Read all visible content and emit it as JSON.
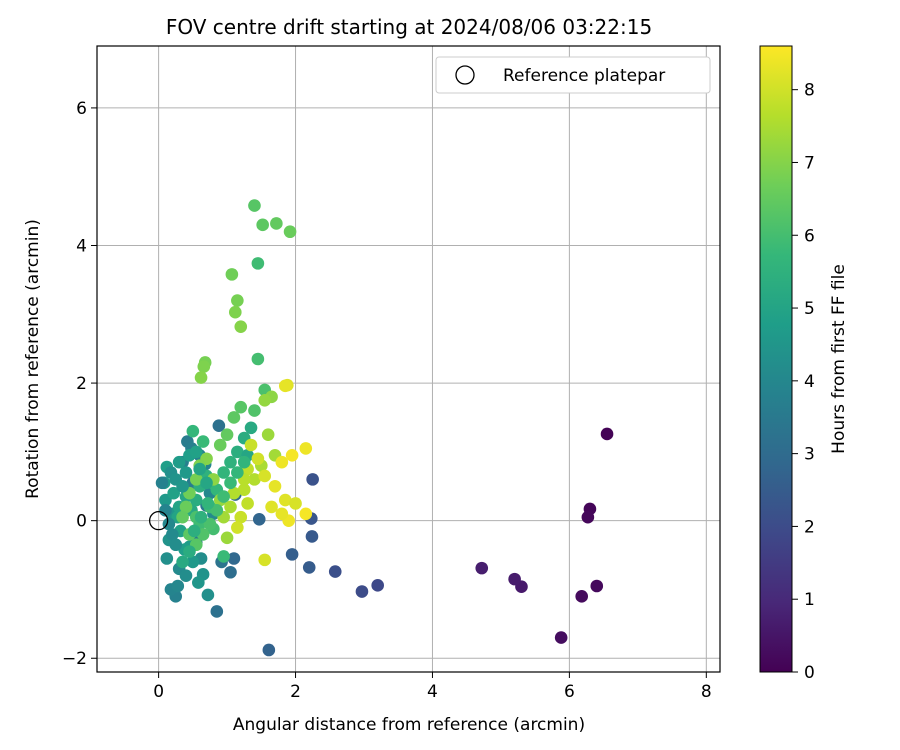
{
  "chart_data": {
    "type": "scatter",
    "title": "FOV centre drift starting at 2024/08/06 03:22:15",
    "xlabel": "Angular distance from reference (arcmin)",
    "ylabel": "Rotation from reference (arcmin)",
    "xlim": [
      -0.9,
      8.2
    ],
    "ylim": [
      -2.2,
      6.9
    ],
    "xticks": [
      0,
      2,
      4,
      6,
      8
    ],
    "yticks": [
      -2,
      0,
      2,
      4,
      6
    ],
    "grid": true,
    "legend": {
      "position": "top-right",
      "label": "Reference platepar"
    },
    "reference_point": {
      "x": 0,
      "y": 0
    },
    "colorbar": {
      "label": "Hours from first FF file",
      "min": 0,
      "max": 8.6,
      "ticks": [
        0,
        1,
        2,
        3,
        4,
        5,
        6,
        7,
        8
      ],
      "colormap": "viridis",
      "stops": [
        "#440154",
        "#482878",
        "#3e4989",
        "#31688e",
        "#26828e",
        "#1f9e89",
        "#35b779",
        "#6ece58",
        "#b5de2b",
        "#fde725"
      ]
    },
    "points": [
      {
        "x": 6.55,
        "y": 1.26,
        "h": 0.05
      },
      {
        "x": 6.3,
        "y": 0.17,
        "h": 0.1
      },
      {
        "x": 6.27,
        "y": 0.05,
        "h": 0.15
      },
      {
        "x": 6.4,
        "y": -0.95,
        "h": 0.2
      },
      {
        "x": 6.18,
        "y": -1.1,
        "h": 0.25
      },
      {
        "x": 5.88,
        "y": -1.7,
        "h": 0.3
      },
      {
        "x": 5.3,
        "y": -0.96,
        "h": 0.6
      },
      {
        "x": 5.2,
        "y": -0.85,
        "h": 0.65
      },
      {
        "x": 4.72,
        "y": -0.69,
        "h": 0.7
      },
      {
        "x": 3.2,
        "y": -0.94,
        "h": 1.9
      },
      {
        "x": 2.97,
        "y": -1.03,
        "h": 2.0
      },
      {
        "x": 2.58,
        "y": -0.74,
        "h": 2.1
      },
      {
        "x": 2.25,
        "y": 0.6,
        "h": 2.2
      },
      {
        "x": 2.23,
        "y": 0.03,
        "h": 2.3
      },
      {
        "x": 2.24,
        "y": -0.23,
        "h": 2.4
      },
      {
        "x": 2.2,
        "y": -0.68,
        "h": 2.5
      },
      {
        "x": 1.95,
        "y": -0.49,
        "h": 2.6
      },
      {
        "x": 1.61,
        "y": -1.88,
        "h": 2.7
      },
      {
        "x": 1.47,
        "y": 0.02,
        "h": 2.8
      },
      {
        "x": 1.1,
        "y": -0.55,
        "h": 2.9
      },
      {
        "x": 1.12,
        "y": 0.38,
        "h": 3.0
      },
      {
        "x": 1.05,
        "y": -0.75,
        "h": 3.1
      },
      {
        "x": 0.88,
        "y": 1.38,
        "h": 3.2
      },
      {
        "x": 0.85,
        "y": -1.32,
        "h": 3.2
      },
      {
        "x": 0.92,
        "y": -0.6,
        "h": 3.3
      },
      {
        "x": 0.7,
        "y": 0.22,
        "h": 3.4
      },
      {
        "x": 0.55,
        "y": -0.32,
        "h": 3.5
      },
      {
        "x": 0.5,
        "y": 0.55,
        "h": 3.6
      },
      {
        "x": 0.35,
        "y": 0.85,
        "h": 3.7
      },
      {
        "x": 0.25,
        "y": -1.1,
        "h": 3.8
      },
      {
        "x": 0.18,
        "y": -1.0,
        "h": 3.9
      },
      {
        "x": 0.28,
        "y": -0.95,
        "h": 4.0
      },
      {
        "x": 0.3,
        "y": -0.7,
        "h": 4.1
      },
      {
        "x": 0.4,
        "y": -0.8,
        "h": 4.2
      },
      {
        "x": 0.12,
        "y": -0.55,
        "h": 4.3
      },
      {
        "x": 0.15,
        "y": -0.28,
        "h": 4.4
      },
      {
        "x": 0.2,
        "y": 0.1,
        "h": 4.5
      },
      {
        "x": 0.1,
        "y": 0.3,
        "h": 4.6
      },
      {
        "x": 0.08,
        "y": 0.55,
        "h": 4.7
      },
      {
        "x": 0.12,
        "y": 0.78,
        "h": 4.8
      },
      {
        "x": 0.22,
        "y": 0.4,
        "h": 4.9
      },
      {
        "x": 0.3,
        "y": 0.2,
        "h": 5.0
      },
      {
        "x": 0.42,
        "y": 1.15,
        "h": 3.6
      },
      {
        "x": 0.48,
        "y": 1.05,
        "h": 3.7
      },
      {
        "x": 0.6,
        "y": 0.95,
        "h": 3.8
      },
      {
        "x": 0.68,
        "y": 0.82,
        "h": 3.9
      },
      {
        "x": 0.75,
        "y": 0.4,
        "h": 4.0
      },
      {
        "x": 0.8,
        "y": 0.1,
        "h": 4.1
      },
      {
        "x": 0.62,
        "y": -0.55,
        "h": 4.2
      },
      {
        "x": 0.72,
        "y": -1.08,
        "h": 4.3
      },
      {
        "x": 0.65,
        "y": -0.78,
        "h": 4.4
      },
      {
        "x": 0.58,
        "y": -0.9,
        "h": 4.5
      },
      {
        "x": 0.5,
        "y": -0.6,
        "h": 4.6
      },
      {
        "x": 0.45,
        "y": -0.38,
        "h": 4.7
      },
      {
        "x": 0.38,
        "y": -0.42,
        "h": 4.8
      },
      {
        "x": 0.32,
        "y": -0.15,
        "h": 4.9
      },
      {
        "x": 0.28,
        "y": 0.05,
        "h": 5.0
      },
      {
        "x": 0.4,
        "y": 0.35,
        "h": 5.1
      },
      {
        "x": 0.48,
        "y": 0.15,
        "h": 5.2
      },
      {
        "x": 0.55,
        "y": 0.3,
        "h": 5.3
      },
      {
        "x": 0.6,
        "y": 0.5,
        "h": 5.4
      },
      {
        "x": 0.7,
        "y": 0.65,
        "h": 5.5
      },
      {
        "x": 0.78,
        "y": 0.55,
        "h": 5.6
      },
      {
        "x": 0.5,
        "y": 1.3,
        "h": 5.7
      },
      {
        "x": 0.65,
        "y": 1.15,
        "h": 5.8
      },
      {
        "x": 0.75,
        "y": 0.2,
        "h": 5.9
      },
      {
        "x": 0.8,
        "y": -0.12,
        "h": 6.0
      },
      {
        "x": 0.55,
        "y": 0.05,
        "h": 6.1
      },
      {
        "x": 0.6,
        "y": -0.05,
        "h": 5.9
      },
      {
        "x": 0.95,
        "y": -0.52,
        "h": 5.8
      },
      {
        "x": 0.85,
        "y": 0.45,
        "h": 5.7
      },
      {
        "x": 0.95,
        "y": 0.7,
        "h": 5.6
      },
      {
        "x": 1.05,
        "y": 0.85,
        "h": 5.5
      },
      {
        "x": 1.15,
        "y": 1.0,
        "h": 5.4
      },
      {
        "x": 1.25,
        "y": 1.2,
        "h": 5.3
      },
      {
        "x": 1.35,
        "y": 1.35,
        "h": 5.2
      },
      {
        "x": 1.3,
        "y": 0.95,
        "h": 5.1
      },
      {
        "x": 1.45,
        "y": 3.74,
        "h": 5.9
      },
      {
        "x": 1.45,
        "y": 2.35,
        "h": 6.0
      },
      {
        "x": 1.55,
        "y": 1.9,
        "h": 6.1
      },
      {
        "x": 1.4,
        "y": 1.6,
        "h": 6.2
      },
      {
        "x": 1.2,
        "y": 1.65,
        "h": 6.3
      },
      {
        "x": 1.1,
        "y": 1.5,
        "h": 6.4
      },
      {
        "x": 1.0,
        "y": 1.25,
        "h": 6.5
      },
      {
        "x": 0.9,
        "y": 1.1,
        "h": 6.6
      },
      {
        "x": 1.4,
        "y": 4.58,
        "h": 6.3
      },
      {
        "x": 1.52,
        "y": 4.3,
        "h": 6.4
      },
      {
        "x": 1.72,
        "y": 4.32,
        "h": 6.5
      },
      {
        "x": 1.92,
        "y": 4.2,
        "h": 6.6
      },
      {
        "x": 1.07,
        "y": 3.58,
        "h": 6.7
      },
      {
        "x": 1.15,
        "y": 3.2,
        "h": 6.8
      },
      {
        "x": 1.12,
        "y": 3.03,
        "h": 6.9
      },
      {
        "x": 1.2,
        "y": 2.82,
        "h": 7.0
      },
      {
        "x": 0.68,
        "y": 2.3,
        "h": 6.8
      },
      {
        "x": 0.66,
        "y": 2.24,
        "h": 6.9
      },
      {
        "x": 0.62,
        "y": 2.08,
        "h": 7.0
      },
      {
        "x": 1.65,
        "y": 1.8,
        "h": 7.1
      },
      {
        "x": 1.55,
        "y": 1.75,
        "h": 7.2
      },
      {
        "x": 1.6,
        "y": 1.25,
        "h": 7.3
      },
      {
        "x": 1.7,
        "y": 0.95,
        "h": 7.4
      },
      {
        "x": 1.5,
        "y": 0.8,
        "h": 7.5
      },
      {
        "x": 1.4,
        "y": 0.6,
        "h": 7.6
      },
      {
        "x": 1.25,
        "y": 0.45,
        "h": 7.7
      },
      {
        "x": 1.3,
        "y": 0.25,
        "h": 7.8
      },
      {
        "x": 1.2,
        "y": 0.05,
        "h": 7.9
      },
      {
        "x": 1.15,
        "y": -0.1,
        "h": 8.0
      },
      {
        "x": 1.55,
        "y": -0.57,
        "h": 8.1
      },
      {
        "x": 1.88,
        "y": 1.97,
        "h": 8.2
      },
      {
        "x": 1.85,
        "y": 1.96,
        "h": 8.3
      },
      {
        "x": 2.15,
        "y": 1.05,
        "h": 8.4
      },
      {
        "x": 1.95,
        "y": 0.95,
        "h": 8.5
      },
      {
        "x": 1.8,
        "y": 0.85,
        "h": 8.4
      },
      {
        "x": 1.7,
        "y": 0.5,
        "h": 8.3
      },
      {
        "x": 1.85,
        "y": 0.3,
        "h": 8.2
      },
      {
        "x": 2.0,
        "y": 0.25,
        "h": 8.1
      },
      {
        "x": 2.15,
        "y": 0.1,
        "h": 8.5
      },
      {
        "x": 1.9,
        "y": 0.0,
        "h": 8.4
      },
      {
        "x": 1.8,
        "y": 0.1,
        "h": 8.3
      },
      {
        "x": 1.65,
        "y": 0.2,
        "h": 8.2
      },
      {
        "x": 1.55,
        "y": 0.65,
        "h": 8.1
      },
      {
        "x": 1.45,
        "y": 0.9,
        "h": 8.0
      },
      {
        "x": 1.35,
        "y": 1.1,
        "h": 7.9
      },
      {
        "x": 1.3,
        "y": 0.75,
        "h": 7.8
      },
      {
        "x": 1.25,
        "y": 0.6,
        "h": 7.7
      },
      {
        "x": 1.1,
        "y": 0.4,
        "h": 7.6
      },
      {
        "x": 1.05,
        "y": 0.2,
        "h": 7.5
      },
      {
        "x": 0.95,
        "y": 0.05,
        "h": 7.4
      },
      {
        "x": 1.0,
        "y": -0.25,
        "h": 7.3
      },
      {
        "x": 0.9,
        "y": 0.3,
        "h": 7.2
      },
      {
        "x": 0.8,
        "y": 0.6,
        "h": 7.1
      },
      {
        "x": 0.7,
        "y": 0.9,
        "h": 7.0
      },
      {
        "x": 0.6,
        "y": 0.8,
        "h": 6.9
      },
      {
        "x": 0.55,
        "y": 0.6,
        "h": 6.8
      },
      {
        "x": 0.45,
        "y": 0.4,
        "h": 6.7
      },
      {
        "x": 0.4,
        "y": 0.2,
        "h": 6.6
      },
      {
        "x": 0.35,
        "y": 0.05,
        "h": 6.5
      },
      {
        "x": 0.45,
        "y": -0.2,
        "h": 6.4
      },
      {
        "x": 0.55,
        "y": -0.35,
        "h": 6.3
      },
      {
        "x": 0.65,
        "y": -0.2,
        "h": 6.2
      },
      {
        "x": 0.75,
        "y": -0.05,
        "h": 6.1
      },
      {
        "x": 0.85,
        "y": 0.15,
        "h": 6.0
      },
      {
        "x": 0.95,
        "y": 0.35,
        "h": 5.9
      },
      {
        "x": 1.05,
        "y": 0.55,
        "h": 5.8
      },
      {
        "x": 1.15,
        "y": 0.7,
        "h": 5.7
      },
      {
        "x": 1.25,
        "y": 0.85,
        "h": 5.6
      },
      {
        "x": 0.05,
        "y": 0.55,
        "h": 3.8
      },
      {
        "x": 0.1,
        "y": 0.15,
        "h": 3.9
      },
      {
        "x": 0.15,
        "y": -0.05,
        "h": 4.0
      },
      {
        "x": 0.2,
        "y": -0.2,
        "h": 4.1
      },
      {
        "x": 0.25,
        "y": -0.35,
        "h": 4.2
      },
      {
        "x": 0.18,
        "y": 0.7,
        "h": 4.3
      },
      {
        "x": 0.25,
        "y": 0.6,
        "h": 4.4
      },
      {
        "x": 0.35,
        "y": 0.5,
        "h": 4.5
      },
      {
        "x": 0.4,
        "y": 0.7,
        "h": 4.6
      },
      {
        "x": 0.3,
        "y": 0.85,
        "h": 4.7
      },
      {
        "x": 0.45,
        "y": 0.95,
        "h": 4.8
      },
      {
        "x": 0.55,
        "y": 1.0,
        "h": 4.9
      },
      {
        "x": 0.6,
        "y": 0.75,
        "h": 5.0
      },
      {
        "x": 0.7,
        "y": 0.55,
        "h": 5.1
      },
      {
        "x": 0.35,
        "y": -0.6,
        "h": 5.2
      },
      {
        "x": 0.45,
        "y": -0.45,
        "h": 5.3
      },
      {
        "x": 0.52,
        "y": -0.15,
        "h": 5.4
      },
      {
        "x": 0.62,
        "y": 0.05,
        "h": 5.5
      },
      {
        "x": 0.72,
        "y": 0.25,
        "h": 5.6
      }
    ]
  }
}
